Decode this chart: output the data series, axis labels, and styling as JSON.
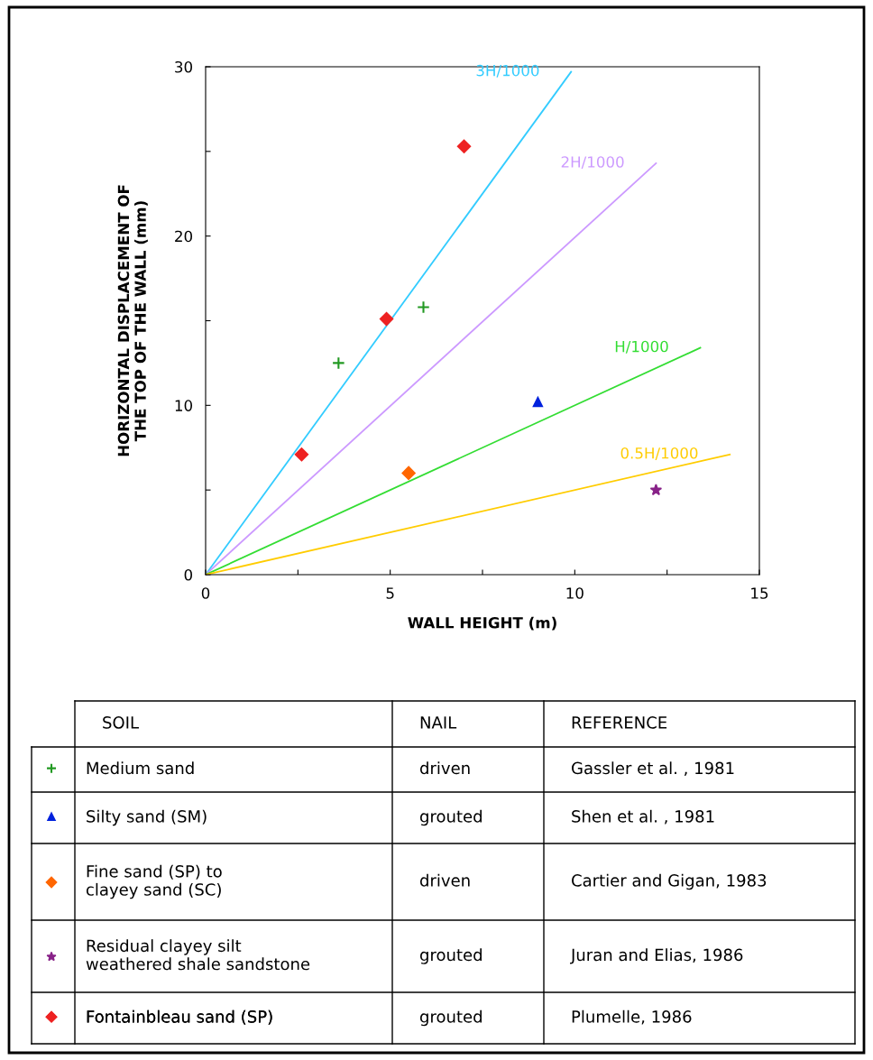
{
  "chart_data": {
    "type": "scatter",
    "xlabel": "WALL HEIGHT (m)",
    "ylabel": "HORIZONTAL DISPLACEMENT OF\nTHE TOP OF THE WALL (mm)",
    "xlim": [
      0,
      15
    ],
    "xticks": [
      0,
      {
        "value": 2.5,
        "label": null
      },
      5,
      {
        "value": 7.5,
        "label": null
      },
      10,
      {
        "value": 12.5,
        "label": null
      },
      15
    ],
    "ylim": [
      0,
      30
    ],
    "yticks": [
      0,
      {
        "value": 5,
        "label": null
      },
      10,
      {
        "value": 15,
        "label": null
      },
      20,
      {
        "value": 25,
        "label": null
      },
      30
    ],
    "grid": false,
    "legend": "bottom",
    "series": [
      {
        "type": "line",
        "name": "3H/1000",
        "color": "#33ccff",
        "marker": "none",
        "x": [
          0,
          9.9
        ],
        "values": [
          0,
          29.7
        ]
      },
      {
        "type": "line",
        "name": "2H/1000",
        "color": "#cc99ff",
        "marker": "none",
        "x": [
          0,
          12.2
        ],
        "values": [
          0,
          24.3
        ]
      },
      {
        "type": "line",
        "name": "H/1000",
        "color": "#33dd33",
        "marker": "none",
        "x": [
          0,
          13.4
        ],
        "values": [
          0,
          13.4
        ]
      },
      {
        "type": "line",
        "name": "0.5H/1000",
        "color": "#ffcc00",
        "marker": "none",
        "x": [
          0,
          14.2
        ],
        "values": [
          0,
          7.1
        ]
      },
      {
        "name": "Medium sand",
        "color": "#229922",
        "marker": "cross",
        "x": [
          3.6,
          5.9
        ],
        "values": [
          12.5,
          15.8
        ]
      },
      {
        "name": "Silty sand (SM)",
        "color": "#0022dd",
        "marker": "triangle",
        "x": [
          9.0
        ],
        "values": [
          10.2
        ]
      },
      {
        "name": "Fine sand (SP) to\nclayey sand (SC)",
        "color": "#ff6600",
        "marker": "diamond",
        "x": [
          5.5
        ],
        "values": [
          6.0
        ]
      },
      {
        "name": "Residual clayey silt\nweathered shale sandstone",
        "color": "#882288",
        "marker": "star",
        "x": [
          12.2
        ],
        "values": [
          5.0
        ]
      },
      {
        "name": "Fontainbleau sand (SP)",
        "color": "#ee2222",
        "marker": "diamond",
        "x": [
          2.6,
          4.9,
          7.0
        ],
        "values": [
          7.1,
          15.1,
          25.3
        ]
      }
    ],
    "annotations": [
      "SOIL",
      "NAIL",
      "REFERENCE",
      "driven",
      "Gassler et al. , 1981",
      "grouted",
      "Shen et al. , 1981",
      "driven",
      "Cartier and Gigan, 1983",
      "grouted",
      "Juran and Elias, 1986",
      "grouted",
      "Plumelle, 1986"
    ]
  }
}
